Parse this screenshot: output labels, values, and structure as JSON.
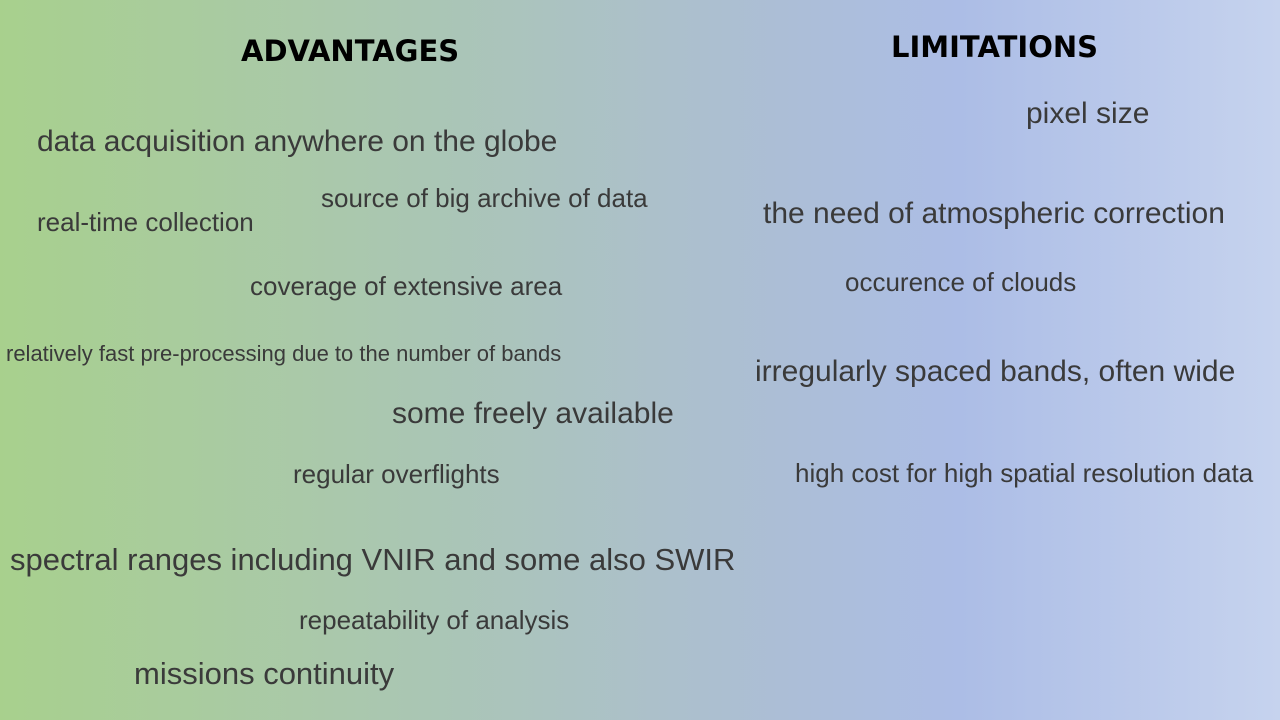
{
  "advantages": {
    "heading": "ADVANTAGES",
    "items": [
      "data acquisition anywhere on the globe",
      "source of big archive of data",
      "real-time collection",
      "coverage of extensive area",
      "relatively fast pre-processing due to the number of bands",
      "some freely available",
      "regular overflights",
      "spectral ranges including VNIR and some also SWIR",
      "repeatability of analysis",
      "missions continuity"
    ]
  },
  "limitations": {
    "heading": "LIMITATIONS",
    "items": [
      "pixel size",
      "the need of atmospheric correction",
      "occurence of clouds",
      "irregularly spaced bands, often wide",
      "high cost for high spatial resolution data"
    ]
  },
  "colors": {
    "heading": "#000000",
    "text": "#3a3a3a",
    "gradient_left": "#a8d08d",
    "gradient_right": "#c6d3ee"
  }
}
